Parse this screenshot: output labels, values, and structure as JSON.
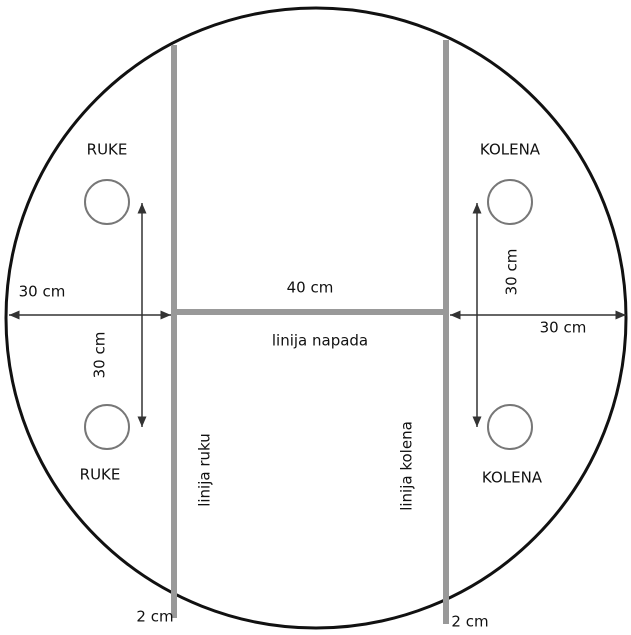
{
  "labels": {
    "hands_top": "RUKE",
    "hands_bottom": "RUKE",
    "knees_top": "KOLENA",
    "knees_bottom": "KOLENA",
    "left_distance": "30 cm",
    "right_distance": "30 cm",
    "center_distance": "40 cm",
    "attack_line": "linija napada",
    "hands_spacing": "30 cm",
    "knees_spacing": "30 cm",
    "hands_line": "linija ruku",
    "knees_line": "linija kolena",
    "hands_line_width": "2 cm",
    "knees_line_width": "2 cm"
  }
}
